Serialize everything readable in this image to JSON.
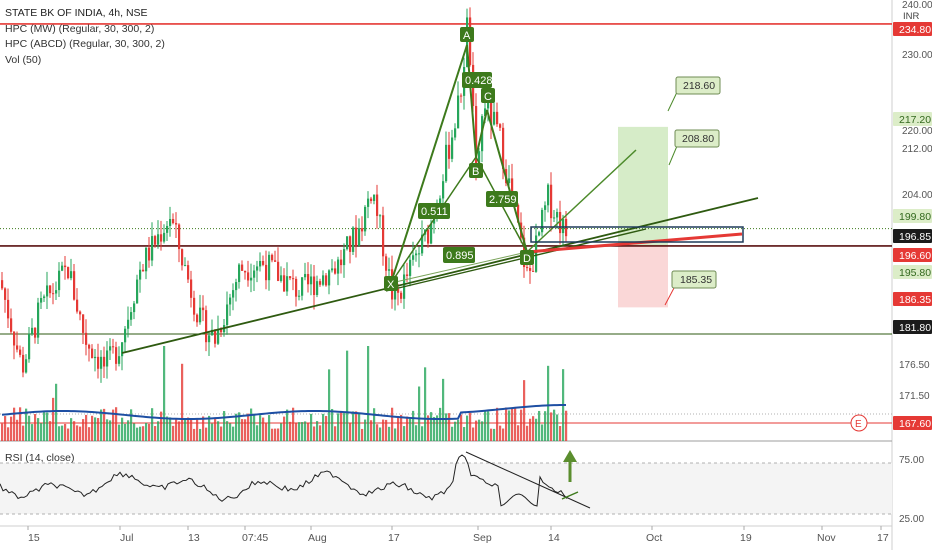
{
  "legend": {
    "title": "STATE BK OF INDIA, 4h, NSE",
    "indicators": [
      "HPC (MW) (Regular, 30, 300, 2)",
      "HPC (ABCD) (Regular, 30, 300, 2)",
      "Vol (50)"
    ],
    "rsi": "RSI (14, close)"
  },
  "currency": "INR",
  "chart_data": {
    "type": "candlestick",
    "price_axis": {
      "ticks": [
        240.0,
        230.0,
        220.0,
        212.0,
        204.0,
        176.5,
        171.5
      ],
      "range": [
        165.5,
        241.5
      ]
    },
    "rsi_axis": {
      "ticks": [
        75.0,
        25.0
      ]
    },
    "price_badges": [
      {
        "value": "234.80",
        "color": "#e53935",
        "text_color": "#ffffff"
      },
      {
        "value": "217.20",
        "color": "#dcedc8",
        "text_color": "#33691e"
      },
      {
        "value": "199.80",
        "color": "#dcedc8",
        "text_color": "#33691e"
      },
      {
        "value": "196.85",
        "color": "#1b1b1b",
        "text_color": "#ffffff"
      },
      {
        "value": "196.60",
        "color": "#e53935",
        "text_color": "#ffffff"
      },
      {
        "value": "195.80",
        "color": "#dcedc8",
        "text_color": "#33691e"
      },
      {
        "value": "186.35",
        "color": "#e53935",
        "text_color": "#ffffff"
      },
      {
        "value": "181.80",
        "color": "#1b1b1b",
        "text_color": "#ffffff"
      },
      {
        "value": "167.60",
        "color": "#e53935",
        "text_color": "#ffffff"
      }
    ],
    "time_axis": [
      "15",
      "Jul",
      "13",
      "07:45",
      "Aug",
      "17",
      "Sep",
      "14",
      "Oct",
      "19",
      "Nov",
      "17"
    ],
    "pattern_points": [
      {
        "label": "X",
        "price": 186.8
      },
      {
        "label": "A",
        "price": 235.2
      },
      {
        "label": "B",
        "price": 207.8
      },
      {
        "label": "C",
        "price": 222.3
      },
      {
        "label": "D",
        "price": 191.0
      }
    ],
    "ratios": [
      "0.428",
      "0.511",
      "2.759",
      "0.895"
    ],
    "targets": [
      "218.60",
      "208.80",
      "185.35"
    ],
    "horizontal_levels": [
      234.8,
      196.85,
      181.8,
      199.8,
      167.6
    ],
    "colors": {
      "up": "#26a65b",
      "down": "#e53935",
      "pattern": "#3d7a1c",
      "volume_ma": "#1e4fa3",
      "trend": "#2e5a10"
    },
    "earnings_marker": "E"
  }
}
